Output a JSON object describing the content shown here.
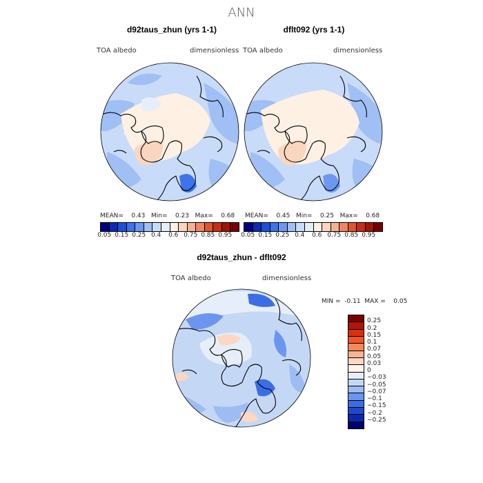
{
  "title": "ANN",
  "panels": [
    {
      "title": "d92taus_zhun (yrs 1-1)",
      "variable": "TOA  albedo",
      "units": "dimensionless",
      "stats": {
        "mean_label": "MEAN=",
        "mean": "0.43",
        "min_label": "Min=",
        "min": "0.23",
        "max_label": "Max=",
        "max": "0.68"
      }
    },
    {
      "title": "dflt092 (yrs 1-1)",
      "variable": "TOA  albedo",
      "units": "dimensionless",
      "stats": {
        "mean_label": "MEAN=",
        "mean": "0.45",
        "min_label": "Min=",
        "min": "0.25",
        "max_label": "Max=",
        "max": "0.68"
      }
    },
    {
      "title": "d92taus_zhun - dflt092",
      "variable": "TOA  albedo",
      "units": "dimensionless",
      "stats": {
        "min_label": "MIN =",
        "min": "-0.11",
        "max_label": "MAX =",
        "max": "0.05"
      }
    }
  ],
  "colorbar_abs": {
    "labels": [
      "0.05",
      "0.15",
      "0.25",
      "0.4",
      "0.6",
      "0.75",
      "0.85",
      "0.95"
    ],
    "colors": [
      "#000080",
      "#0a2ab4",
      "#1f4fd8",
      "#3d73eb",
      "#6d98f2",
      "#9fbff5",
      "#c8dbf8",
      "#e6eefa",
      "#fff0e4",
      "#fbd6bf",
      "#f6b194",
      "#f08562",
      "#e0552e",
      "#c82e12",
      "#a01505",
      "#760000"
    ]
  },
  "colorbar_diff": {
    "labels": [
      "0.25",
      "0.2",
      "0.15",
      "0.1",
      "0.07",
      "0.05",
      "0.03",
      "0",
      "−0.03",
      "−0.05",
      "−0.07",
      "−0.1",
      "−0.15",
      "−0.2",
      "−0.25"
    ],
    "colors": [
      "#7a0000",
      "#b01505",
      "#d83010",
      "#f25522",
      "#f6885c",
      "#f9b494",
      "#fcd8c2",
      "#fff4ea",
      "#e6eefa",
      "#c4d8f6",
      "#9dbcf2",
      "#6c95ee",
      "#3b6ee6",
      "#1f48d0",
      "#0a28a8",
      "#000070"
    ]
  }
}
